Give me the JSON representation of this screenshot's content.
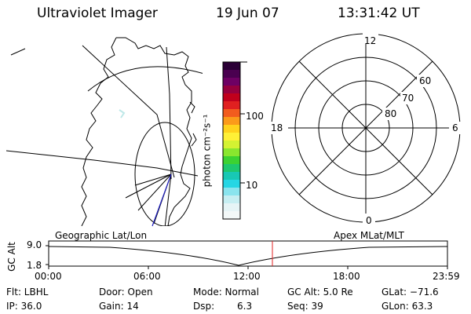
{
  "header": {
    "title": "Ultraviolet Imager",
    "date": "19 Jun 07",
    "time": "13:31:42 UT"
  },
  "colorbar": {
    "unit": "photon cm⁻²s⁻¹",
    "ticks": [
      "100",
      "10"
    ],
    "colors": [
      "#2b0036",
      "#4a0050",
      "#6e0064",
      "#96003e",
      "#c0001c",
      "#e02020",
      "#f25c1e",
      "#fb9a1a",
      "#ffd21c",
      "#fff036",
      "#d4f232",
      "#8ae62e",
      "#3cd232",
      "#1ec86e",
      "#18c8b4",
      "#26d6e4",
      "#8ae4ee",
      "#c6eef2",
      "#e6f4f6",
      "#f3f8f8"
    ]
  },
  "polar": {
    "mlt_labels": [
      "12",
      "18",
      "6",
      "0"
    ],
    "lat_labels": [
      "60",
      "70",
      "80"
    ]
  },
  "strip": {
    "left_label": "Geographic Lat/Lon",
    "right_label": "Apex MLat/MLT",
    "yaxis_label": "GC Alt",
    "y_ticks": [
      "9.0",
      "1.8"
    ],
    "x_ticks": [
      "00:00",
      "06:00",
      "12:00",
      "18:00",
      "23:59"
    ],
    "current_marker_time": "13:31:42"
  },
  "footer": {
    "row1": [
      "Flt: LBHL",
      "Door: Open",
      "Mode: Normal",
      "GC Alt: 5.0 Re",
      "GLat: −71.6"
    ],
    "row2": [
      "IP: 36.0",
      "Gain: 14",
      "Dsp:",
      "6.3",
      "Seq: 39",
      "GLon:  63.3"
    ]
  }
}
